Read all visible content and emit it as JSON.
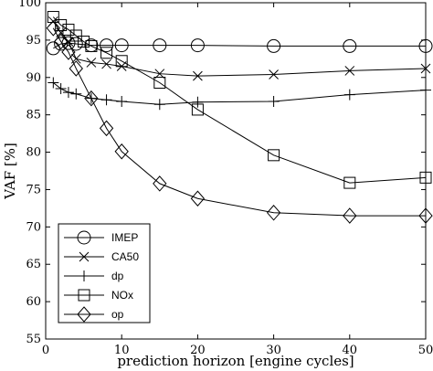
{
  "chart_data": {
    "type": "line",
    "title": "",
    "xlabel": "prediction horizon [engine cycles]",
    "ylabel": "VAF [%]",
    "xlim": [
      0,
      50
    ],
    "ylim": [
      55,
      100
    ],
    "xticks": [
      0,
      10,
      20,
      30,
      40,
      50
    ],
    "yticks": [
      55,
      60,
      65,
      70,
      75,
      80,
      85,
      90,
      95,
      100
    ],
    "grid": false,
    "legend_position": "lower-left",
    "series": [
      {
        "name": "IMEP",
        "marker": "circle",
        "x": [
          1,
          2,
          3,
          4,
          6,
          8,
          10,
          15,
          20,
          30,
          40,
          50
        ],
        "y": [
          93.9,
          94.5,
          94.6,
          94.5,
          94.3,
          94.3,
          94.3,
          94.3,
          94.3,
          94.2,
          94.2,
          94.2
        ]
      },
      {
        "name": "CA50",
        "marker": "x",
        "x": [
          1,
          2,
          3,
          4,
          6,
          8,
          10,
          15,
          20,
          30,
          40,
          50
        ],
        "y": [
          97.5,
          96.0,
          94.8,
          92.5,
          92.0,
          91.8,
          91.5,
          90.5,
          90.2,
          90.4,
          90.9,
          91.2
        ]
      },
      {
        "name": "dp",
        "marker": "plus",
        "x": [
          1,
          2,
          3,
          4,
          6,
          8,
          10,
          15,
          20,
          30,
          40,
          50
        ],
        "y": [
          89.3,
          88.5,
          88.0,
          87.8,
          87.2,
          87.0,
          86.8,
          86.4,
          86.7,
          86.8,
          87.7,
          88.3
        ]
      },
      {
        "name": "NOx",
        "marker": "square",
        "x": [
          1,
          2,
          3,
          4,
          5,
          6,
          8,
          10,
          15,
          20,
          30,
          40,
          50
        ],
        "y": [
          98.1,
          97.0,
          96.4,
          95.6,
          94.8,
          94.2,
          93.3,
          92.2,
          89.3,
          85.7,
          79.6,
          75.9,
          76.6
        ]
      },
      {
        "name": "op",
        "marker": "diamond",
        "x": [
          1,
          2,
          3,
          4,
          6,
          8,
          10,
          15,
          20,
          30,
          40,
          50
        ],
        "y": [
          96.6,
          94.8,
          93.4,
          91.2,
          87.2,
          83.2,
          80.1,
          75.8,
          73.8,
          71.9,
          71.5,
          71.5
        ]
      }
    ]
  }
}
